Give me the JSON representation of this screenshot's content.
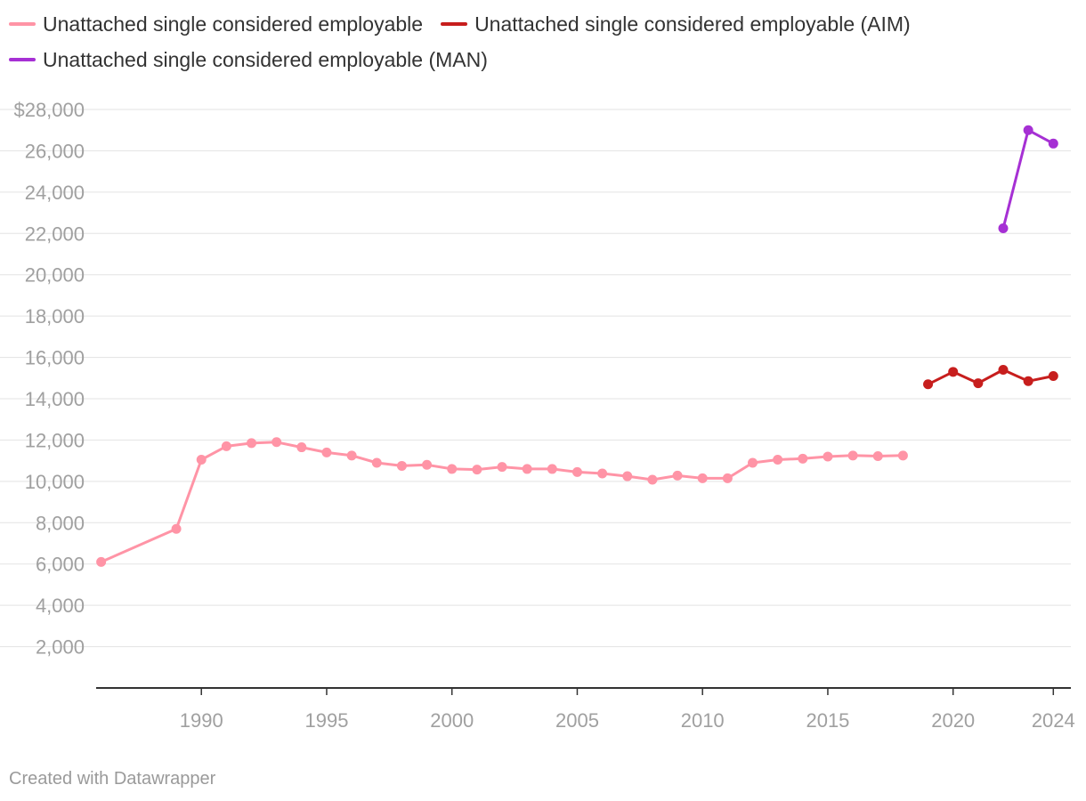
{
  "legend": [
    {
      "label": "Unattached single considered employable",
      "color": "#ff94a6"
    },
    {
      "label": "Unattached single considered employable (AIM)",
      "color": "#c71e1d"
    },
    {
      "label": "Unattached single considered employable (MAN)",
      "color": "#a630d4"
    }
  ],
  "footer": {
    "credit": "Created with Datawrapper"
  },
  "chart_data": {
    "type": "line",
    "title": "",
    "xlabel": "",
    "ylabel": "",
    "xlim": [
      1985.8,
      2024.7
    ],
    "ylim": [
      0,
      28000
    ],
    "grid": true,
    "legend_position": "top-left",
    "y_ticks": [
      {
        "value": 28000,
        "label": "$28,000"
      },
      {
        "value": 26000,
        "label": "26,000"
      },
      {
        "value": 24000,
        "label": "24,000"
      },
      {
        "value": 22000,
        "label": "22,000"
      },
      {
        "value": 20000,
        "label": "20,000"
      },
      {
        "value": 18000,
        "label": "18,000"
      },
      {
        "value": 16000,
        "label": "16,000"
      },
      {
        "value": 14000,
        "label": "14,000"
      },
      {
        "value": 12000,
        "label": "12,000"
      },
      {
        "value": 10000,
        "label": "10,000"
      },
      {
        "value": 8000,
        "label": "8,000"
      },
      {
        "value": 6000,
        "label": "6,000"
      },
      {
        "value": 4000,
        "label": "4,000"
      },
      {
        "value": 2000,
        "label": "2,000"
      }
    ],
    "x_ticks": [
      {
        "value": 1990,
        "label": "1990"
      },
      {
        "value": 1995,
        "label": "1995"
      },
      {
        "value": 2000,
        "label": "2000"
      },
      {
        "value": 2005,
        "label": "2005"
      },
      {
        "value": 2010,
        "label": "2010"
      },
      {
        "value": 2015,
        "label": "2015"
      },
      {
        "value": 2020,
        "label": "2020"
      },
      {
        "value": 2024,
        "label": "2024"
      }
    ],
    "series": [
      {
        "name": "Unattached single considered employable",
        "color": "#ff94a6",
        "x": [
          1986,
          1989,
          1990,
          1991,
          1992,
          1993,
          1994,
          1995,
          1996,
          1997,
          1998,
          1999,
          2000,
          2001,
          2002,
          2003,
          2004,
          2005,
          2006,
          2007,
          2008,
          2009,
          2010,
          2011,
          2012,
          2013,
          2014,
          2015,
          2016,
          2017,
          2018
        ],
        "y": [
          6100,
          7700,
          11050,
          11700,
          11850,
          11900,
          11650,
          11400,
          11250,
          10900,
          10750,
          10800,
          10600,
          10570,
          10700,
          10600,
          10600,
          10450,
          10380,
          10250,
          10080,
          10280,
          10150,
          10150,
          10900,
          11050,
          11100,
          11200,
          11250,
          11220,
          11250
        ]
      },
      {
        "name": "Unattached single considered employable (AIM)",
        "color": "#c71e1d",
        "x": [
          2019,
          2020,
          2021,
          2022,
          2023,
          2024
        ],
        "y": [
          14700,
          15300,
          14750,
          15400,
          14850,
          15100
        ]
      },
      {
        "name": "Unattached single considered employable (MAN)",
        "color": "#a630d4",
        "x": [
          2022,
          2023,
          2024
        ],
        "y": [
          22250,
          27000,
          26350
        ]
      }
    ]
  }
}
